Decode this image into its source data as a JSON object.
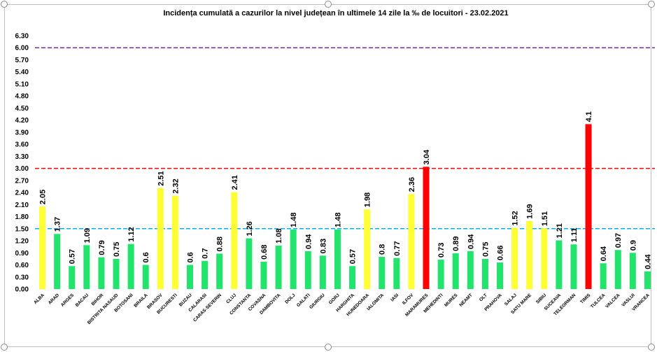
{
  "chart_data": {
    "type": "bar",
    "title": "Incidența cumulată a cazurilor la nivel județean în ultimele 14 zile   la ‰ de locuitori  - 23.02.2021",
    "xlabel": "",
    "ylabel": "",
    "ylim": [
      0,
      6.3
    ],
    "yticks": [
      "0.00",
      "0.30",
      "0.60",
      "0.90",
      "1.20",
      "1.50",
      "1.80",
      "2.10",
      "2.40",
      "2.70",
      "3.00",
      "3.30",
      "3.60",
      "3.90",
      "4.20",
      "4.50",
      "4.80",
      "5.10",
      "5.40",
      "5.70",
      "6.00",
      "6.30"
    ],
    "grid": false,
    "legend": "none",
    "categories": [
      "ALBA",
      "ARAD",
      "ARGES",
      "BACAU",
      "BIHOR",
      "BISTRITA NASAUD",
      "BOTOSANI",
      "BRAILA",
      "BRASOV",
      "BUCURESTI",
      "BUZAU",
      "CALARASI",
      "CARAS-SEVERIN",
      "CLUJ",
      "CONSTANTA",
      "COVASNA",
      "DAMBOVITA",
      "DOLJ",
      "GALATI",
      "GIURGIU",
      "GORJ",
      "HARGHITA",
      "HUNEDOARA",
      "IALOMITA",
      "IASI",
      "ILFOV",
      "MARAMURES",
      "MEHEDINTI",
      "MURES",
      "NEAMT",
      "OLT",
      "PRAHOVA",
      "SALAJ",
      "SATU MARE",
      "SIBIU",
      "SUCEAVA",
      "TELEORMAN",
      "TIMIS",
      "TULCEA",
      "VALCEA",
      "VASLUI",
      "VRANCEA"
    ],
    "values": [
      2.05,
      1.37,
      0.57,
      1.09,
      0.79,
      0.75,
      1.12,
      0.6,
      2.51,
      2.32,
      0.6,
      0.7,
      0.88,
      2.41,
      1.26,
      0.68,
      1.08,
      1.48,
      0.94,
      0.83,
      1.48,
      0.57,
      1.98,
      0.8,
      0.77,
      2.36,
      3.04,
      0.73,
      0.89,
      0.94,
      0.75,
      0.66,
      1.52,
      1.69,
      1.51,
      1.21,
      1.11,
      4.1,
      0.64,
      0.97,
      0.9,
      0.44
    ],
    "value_labels": [
      "2.05",
      "1.37",
      "0.57",
      "1.09",
      "0.79",
      "0.75",
      "1.12",
      "0.6",
      "2.51",
      "2.32",
      "0.6",
      "0.7",
      "0.88",
      "2.41",
      "1.26",
      "0.68",
      "1.08",
      "1.48",
      "0.94",
      "0.83",
      "1.48",
      "0.57",
      "1.98",
      "0.8",
      "0.77",
      "2.36",
      "3.04",
      "0.73",
      "0.89",
      "0.94",
      "0.75",
      "0.66",
      "1.52",
      "1.69",
      "1.51",
      "1.21",
      "1.11",
      "4.1",
      "0.64",
      "0.97",
      "0.9",
      "0.44"
    ],
    "colors": {
      "green": "#22e36b",
      "yellow": "#ffff33",
      "red": "#ff0000",
      "line_6": "#7030a0",
      "line_3": "#ff0000",
      "line_1_5": "#00b0f0"
    },
    "thresholds": [
      {
        "value": 6.0,
        "color": "#7030a0"
      },
      {
        "value": 3.0,
        "color": "#ff0000"
      },
      {
        "value": 1.5,
        "color": "#00b0f0"
      }
    ],
    "color_rule": "green below 1.5, yellow 1.5 to 3, red above 3"
  }
}
